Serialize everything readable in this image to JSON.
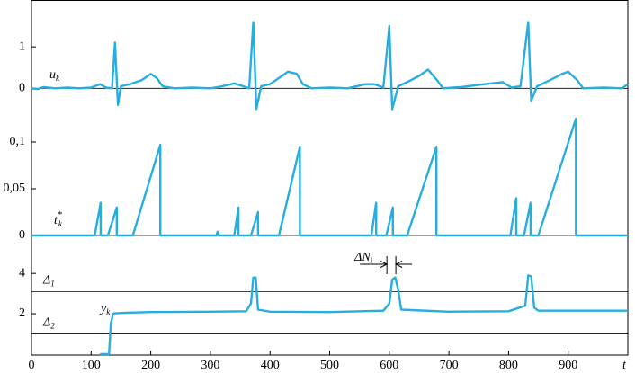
{
  "chart_data": [
    {
      "type": "line",
      "label": {
        "base": "u",
        "sub": "k"
      },
      "xlim": [
        0,
        1000
      ],
      "ylim": [
        -0.6,
        2
      ],
      "yticks": [
        0,
        1
      ],
      "hlines": [
        0
      ],
      "x": [
        0,
        10,
        20,
        40,
        60,
        80,
        100,
        115,
        125,
        135,
        140,
        145,
        150,
        165,
        185,
        200,
        210,
        220,
        240,
        270,
        300,
        320,
        340,
        355,
        365,
        372,
        377,
        385,
        400,
        420,
        430,
        445,
        455,
        470,
        500,
        530,
        560,
        575,
        590,
        600,
        605,
        615,
        630,
        650,
        665,
        680,
        690,
        720,
        760,
        790,
        805,
        820,
        833,
        838,
        848,
        870,
        890,
        900,
        915,
        925,
        960,
        990,
        1000
      ],
      "series": [
        {
          "color": "#27aee0",
          "values": [
            0,
            -0.02,
            0.03,
            0,
            0.02,
            0,
            0.02,
            0.1,
            0.02,
            0,
            1.1,
            -0.4,
            0.05,
            0.1,
            0.2,
            0.35,
            0.25,
            0.05,
            0,
            0.02,
            0,
            0.05,
            0.12,
            0.05,
            0,
            1.6,
            -0.5,
            0.05,
            0.1,
            0.3,
            0.4,
            0.35,
            0.1,
            0,
            0.02,
            0,
            0.1,
            0.1,
            0.02,
            1.5,
            -0.5,
            0.05,
            0.15,
            0.3,
            0.45,
            0.2,
            0,
            0.03,
            0.1,
            0.15,
            0.02,
            0.05,
            1.6,
            -0.3,
            0.05,
            0.2,
            0.35,
            0.4,
            0.2,
            0,
            0.02,
            0,
            0.1
          ]
        }
      ]
    },
    {
      "type": "line",
      "label": {
        "base": "t",
        "sub": "k",
        "sup": "*"
      },
      "xlim": [
        0,
        1000
      ],
      "ylim": [
        -0.0125,
        0.125
      ],
      "yticks": [
        0,
        {
          "value": 0.05,
          "label": "0,05"
        },
        {
          "value": 0.1,
          "label": "0,1"
        }
      ],
      "hlines": [
        0
      ],
      "x": [
        0,
        100,
        106,
        116,
        116,
        128,
        143,
        143,
        160,
        170,
        216,
        216,
        310,
        312,
        315,
        340,
        347,
        347,
        368,
        380,
        380,
        415,
        450,
        450,
        560,
        570,
        578,
        578,
        595,
        606,
        606,
        630,
        679,
        679,
        795,
        803,
        813,
        813,
        826,
        837,
        837,
        850,
        913,
        913,
        1000
      ],
      "series": [
        {
          "color": "#27aee0",
          "values": [
            0,
            0,
            0,
            0.035,
            0,
            0,
            0.03,
            0,
            0,
            0,
            0.097,
            0,
            0,
            0.004,
            0,
            0,
            0.03,
            0,
            0,
            0.025,
            0,
            0,
            0.095,
            0,
            0,
            0,
            0.035,
            0,
            0,
            0.03,
            0,
            0,
            0.095,
            0,
            0,
            0,
            0.04,
            0,
            0,
            0.035,
            0,
            0,
            0.125,
            0,
            0
          ]
        }
      ]
    },
    {
      "type": "line",
      "label": {
        "base": "y",
        "sub": "k"
      },
      "xlim": [
        0,
        1000
      ],
      "ylim": [
        -0.05,
        4.9
      ],
      "yticks": [
        2,
        4
      ],
      "xticks": [
        0,
        100,
        200,
        300,
        400,
        500,
        600,
        700,
        800,
        900
      ],
      "x_label": "t",
      "thresholds": [
        {
          "base": "Δ",
          "sub": "1",
          "value": 3.1
        },
        {
          "base": "Δ",
          "sub": "2",
          "value": 1
        }
      ],
      "annotation": {
        "base": "ΔN",
        "sub": "i",
        "x": [
          596,
          611
        ]
      },
      "x": [
        115,
        130,
        133,
        137,
        140,
        160,
        200,
        300,
        360,
        368,
        372,
        376,
        380,
        400,
        500,
        590,
        600,
        605,
        610,
        615,
        620,
        700,
        800,
        828,
        833,
        838,
        843,
        850,
        1000
      ],
      "series": [
        {
          "color": "#27aee0",
          "values": [
            0,
            0,
            1.5,
            2.0,
            2.02,
            2.05,
            2.08,
            2.1,
            2.12,
            2.5,
            3.8,
            3.8,
            2.2,
            2.1,
            2.08,
            2.15,
            2.5,
            3.7,
            3.8,
            3.2,
            2.2,
            2.1,
            2.12,
            2.4,
            3.9,
            3.85,
            2.3,
            2.15,
            2.15
          ]
        }
      ]
    }
  ]
}
